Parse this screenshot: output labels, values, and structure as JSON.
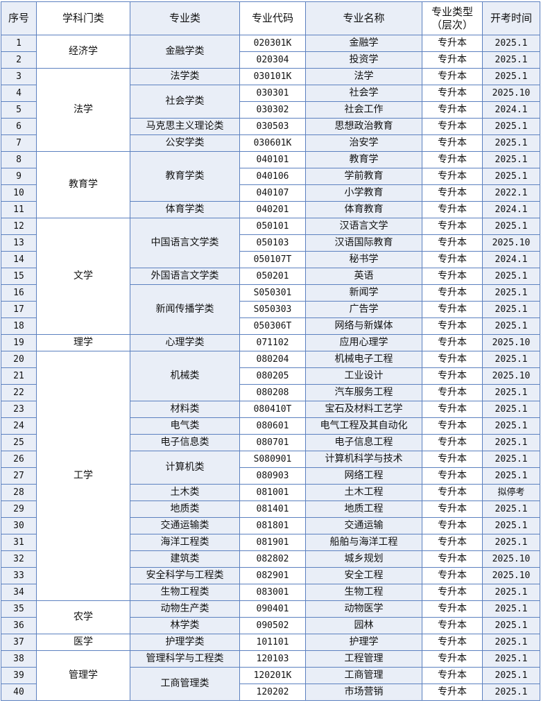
{
  "headers": [
    "序号",
    "学科门类",
    "专业类",
    "专业代码",
    "专业名称",
    "专业类型\n（层次）",
    "开考时间"
  ],
  "disciplines": [
    {
      "name": "经济学",
      "categories": [
        {
          "name": "金融学类",
          "majors": [
            {
              "seq": "1",
              "code": "020301K",
              "name": "金融学",
              "type": "专升本",
              "date": "2025.1"
            },
            {
              "seq": "2",
              "code": "020304",
              "name": "投资学",
              "type": "专升本",
              "date": "2025.1"
            }
          ]
        }
      ]
    },
    {
      "name": "法学",
      "categories": [
        {
          "name": "法学类",
          "majors": [
            {
              "seq": "3",
              "code": "030101K",
              "name": "法学",
              "type": "专升本",
              "date": "2025.1"
            }
          ]
        },
        {
          "name": "社会学类",
          "majors": [
            {
              "seq": "4",
              "code": "030301",
              "name": "社会学",
              "type": "专升本",
              "date": "2025.10"
            },
            {
              "seq": "5",
              "code": "030302",
              "name": "社会工作",
              "type": "专升本",
              "date": "2024.1"
            }
          ]
        },
        {
          "name": "马克思主义理论类",
          "majors": [
            {
              "seq": "6",
              "code": "030503",
              "name": "思想政治教育",
              "type": "专升本",
              "date": "2025.1"
            }
          ]
        },
        {
          "name": "公安学类",
          "majors": [
            {
              "seq": "7",
              "code": "030601K",
              "name": "治安学",
              "type": "专升本",
              "date": "2025.1"
            }
          ]
        }
      ]
    },
    {
      "name": "教育学",
      "categories": [
        {
          "name": "教育学类",
          "majors": [
            {
              "seq": "8",
              "code": "040101",
              "name": "教育学",
              "type": "专升本",
              "date": "2025.1"
            },
            {
              "seq": "9",
              "code": "040106",
              "name": "学前教育",
              "type": "专升本",
              "date": "2025.1"
            },
            {
              "seq": "10",
              "code": "040107",
              "name": "小学教育",
              "type": "专升本",
              "date": "2022.1"
            }
          ]
        },
        {
          "name": "体育学类",
          "majors": [
            {
              "seq": "11",
              "code": "040201",
              "name": "体育教育",
              "type": "专升本",
              "date": "2024.1"
            }
          ]
        }
      ]
    },
    {
      "name": "文学",
      "categories": [
        {
          "name": "中国语言文学类",
          "majors": [
            {
              "seq": "12",
              "code": "050101",
              "name": "汉语言文学",
              "type": "专升本",
              "date": "2025.1"
            },
            {
              "seq": "13",
              "code": "050103",
              "name": "汉语国际教育",
              "type": "专升本",
              "date": "2025.10"
            },
            {
              "seq": "14",
              "code": "050107T",
              "name": "秘书学",
              "type": "专升本",
              "date": "2024.1"
            }
          ]
        },
        {
          "name": "外国语言文学类",
          "majors": [
            {
              "seq": "15",
              "code": "050201",
              "name": "英语",
              "type": "专升本",
              "date": "2025.1"
            }
          ]
        },
        {
          "name": "新闻传播学类",
          "majors": [
            {
              "seq": "16",
              "code": "S050301",
              "name": "新闻学",
              "type": "专升本",
              "date": "2025.1"
            },
            {
              "seq": "17",
              "code": "S050303",
              "name": "广告学",
              "type": "专升本",
              "date": "2025.1"
            },
            {
              "seq": "18",
              "code": "050306T",
              "name": "网络与新媒体",
              "type": "专升本",
              "date": "2025.1"
            }
          ]
        }
      ]
    },
    {
      "name": "理学",
      "categories": [
        {
          "name": "心理学类",
          "majors": [
            {
              "seq": "19",
              "code": "071102",
              "name": "应用心理学",
              "type": "专升本",
              "date": "2025.10"
            }
          ]
        }
      ]
    },
    {
      "name": "工学",
      "categories": [
        {
          "name": "机械类",
          "majors": [
            {
              "seq": "20",
              "code": "080204",
              "name": "机械电子工程",
              "type": "专升本",
              "date": "2025.1"
            },
            {
              "seq": "21",
              "code": "080205",
              "name": "工业设计",
              "type": "专升本",
              "date": "2025.10"
            },
            {
              "seq": "22",
              "code": "080208",
              "name": "汽车服务工程",
              "type": "专升本",
              "date": "2025.1"
            }
          ]
        },
        {
          "name": "材料类",
          "majors": [
            {
              "seq": "23",
              "code": "080410T",
              "name": "宝石及材料工艺学",
              "type": "专升本",
              "date": "2025.1"
            }
          ]
        },
        {
          "name": "电气类",
          "majors": [
            {
              "seq": "24",
              "code": "080601",
              "name": "电气工程及其自动化",
              "type": "专升本",
              "date": "2025.1"
            }
          ]
        },
        {
          "name": "电子信息类",
          "majors": [
            {
              "seq": "25",
              "code": "080701",
              "name": "电子信息工程",
              "type": "专升本",
              "date": "2025.1"
            }
          ]
        },
        {
          "name": "计算机类",
          "majors": [
            {
              "seq": "26",
              "code": "S080901",
              "name": "计算机科学与技术",
              "type": "专升本",
              "date": "2025.1"
            },
            {
              "seq": "27",
              "code": "080903",
              "name": "网络工程",
              "type": "专升本",
              "date": "2025.1"
            }
          ]
        },
        {
          "name": "土木类",
          "majors": [
            {
              "seq": "28",
              "code": "081001",
              "name": "土木工程",
              "type": "专升本",
              "date": "拟停考"
            }
          ]
        },
        {
          "name": "地质类",
          "majors": [
            {
              "seq": "29",
              "code": "081401",
              "name": "地质工程",
              "type": "专升本",
              "date": "2025.1"
            }
          ]
        },
        {
          "name": "交通运输类",
          "majors": [
            {
              "seq": "30",
              "code": "081801",
              "name": "交通运输",
              "type": "专升本",
              "date": "2025.1"
            }
          ]
        },
        {
          "name": "海洋工程类",
          "majors": [
            {
              "seq": "31",
              "code": "081901",
              "name": "船舶与海洋工程",
              "type": "专升本",
              "date": "2025.1"
            }
          ]
        },
        {
          "name": "建筑类",
          "majors": [
            {
              "seq": "32",
              "code": "082802",
              "name": "城乡规划",
              "type": "专升本",
              "date": "2025.10"
            }
          ]
        },
        {
          "name": "安全科学与工程类",
          "majors": [
            {
              "seq": "33",
              "code": "082901",
              "name": "安全工程",
              "type": "专升本",
              "date": "2025.10"
            }
          ]
        },
        {
          "name": "生物工程类",
          "majors": [
            {
              "seq": "34",
              "code": "083001",
              "name": "生物工程",
              "type": "专升本",
              "date": "2025.1"
            }
          ]
        }
      ]
    },
    {
      "name": "农学",
      "categories": [
        {
          "name": "动物生产类",
          "majors": [
            {
              "seq": "35",
              "code": "090401",
              "name": "动物医学",
              "type": "专升本",
              "date": "2025.1"
            }
          ]
        },
        {
          "name": "林学类",
          "majors": [
            {
              "seq": "36",
              "code": "090502",
              "name": "园林",
              "type": "专升本",
              "date": "2025.1"
            }
          ]
        }
      ]
    },
    {
      "name": "医学",
      "categories": [
        {
          "name": "护理学类",
          "majors": [
            {
              "seq": "37",
              "code": "101101",
              "name": "护理学",
              "type": "专升本",
              "date": "2025.1"
            }
          ]
        }
      ]
    },
    {
      "name": "管理学",
      "categories": [
        {
          "name": "管理科学与工程类",
          "majors": [
            {
              "seq": "38",
              "code": "120103",
              "name": "工程管理",
              "type": "专升本",
              "date": "2025.1"
            }
          ]
        },
        {
          "name": "工商管理类",
          "majors": [
            {
              "seq": "39",
              "code": "120201K",
              "name": "工商管理",
              "type": "专升本",
              "date": "2025.1"
            },
            {
              "seq": "40",
              "code": "120202",
              "name": "市场营销",
              "type": "专升本",
              "date": "2025.1"
            }
          ]
        }
      ]
    }
  ]
}
